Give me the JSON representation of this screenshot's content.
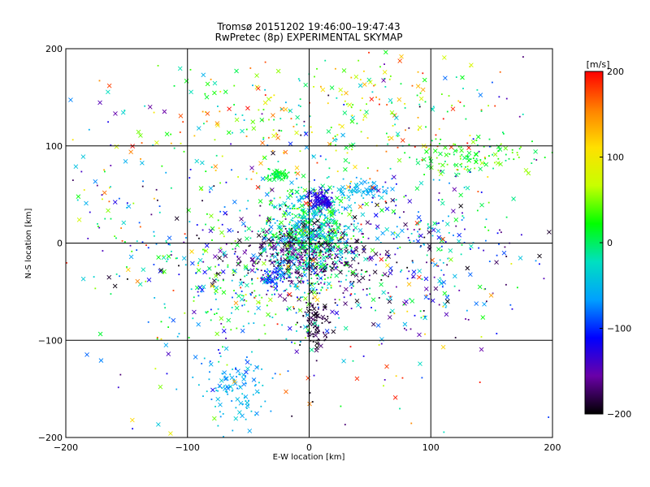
{
  "chart_data": {
    "type": "scatter",
    "title": "Tromsø 20151202 19:46:00–19:47:43",
    "subtitle": "RwPretec (8p) EXPERIMENTAL SKYMAP",
    "xlabel": "E-W location [km]",
    "ylabel": "N-S location [km]",
    "xlim": [
      -200,
      200
    ],
    "ylim": [
      -200,
      200
    ],
    "x_ticks": [
      -200,
      -100,
      0,
      100,
      200
    ],
    "y_ticks": [
      -200,
      -100,
      0,
      100,
      200
    ],
    "grid": true,
    "markers": [
      "dot",
      "x"
    ],
    "colorbar": {
      "label": "[m/s]",
      "range": [
        -200,
        200
      ],
      "ticks": [
        200,
        100,
        0,
        -100,
        -200
      ],
      "colors": [
        "#000000",
        "#6a00a8",
        "#0000ff",
        "#00a0ff",
        "#00e0c0",
        "#00ff00",
        "#c8ff00",
        "#ffe000",
        "#ff8000",
        "#ff0000"
      ],
      "placement": "right"
    },
    "clusters": [
      {
        "cx": 0,
        "cy": 10,
        "sx": 18,
        "sy": 25,
        "n": 700,
        "vmin": -80,
        "vmax": 40
      },
      {
        "cx": -8,
        "cy": -15,
        "sx": 28,
        "sy": 18,
        "n": 380,
        "vmin": -200,
        "vmax": -150
      },
      {
        "cx": 10,
        "cy": 45,
        "sx": 6,
        "sy": 5,
        "n": 90,
        "vmin": -140,
        "vmax": -110
      },
      {
        "cx": -25,
        "cy": 70,
        "sx": 4,
        "sy": 3,
        "n": 60,
        "vmin": -10,
        "vmax": 20
      },
      {
        "cx": 45,
        "cy": 55,
        "sx": 12,
        "sy": 5,
        "n": 70,
        "vmin": -70,
        "vmax": -40
      },
      {
        "cx": -30,
        "cy": -35,
        "sx": 5,
        "sy": 5,
        "n": 50,
        "vmin": -120,
        "vmax": -80
      },
      {
        "cx": 5,
        "cy": -85,
        "sx": 6,
        "sy": 10,
        "n": 90,
        "vmin": -200,
        "vmax": -170
      },
      {
        "cx": -60,
        "cy": -155,
        "sx": 12,
        "sy": 22,
        "n": 110,
        "vmin": -80,
        "vmax": -30
      },
      {
        "cx": 140,
        "cy": 90,
        "sx": 30,
        "sy": 10,
        "n": 120,
        "vmin": -10,
        "vmax": 60
      },
      {
        "cx": 90,
        "cy": -10,
        "sx": 40,
        "sy": 45,
        "n": 260,
        "vmin": -200,
        "vmax": 20
      },
      {
        "cx": -50,
        "cy": -40,
        "sx": 45,
        "sy": 40,
        "n": 300,
        "vmin": -120,
        "vmax": 60
      },
      {
        "cx": -40,
        "cy": 120,
        "sx": 55,
        "sy": 35,
        "n": 150,
        "vmin": -60,
        "vmax": 200
      },
      {
        "cx": 70,
        "cy": 140,
        "sx": 40,
        "sy": 30,
        "n": 120,
        "vmin": -40,
        "vmax": 200
      },
      {
        "cx": -140,
        "cy": 30,
        "sx": 30,
        "sy": 40,
        "n": 80,
        "vmin": -200,
        "vmax": 200
      },
      {
        "cx": 0,
        "cy": 0,
        "sx": 110,
        "sy": 110,
        "n": 400,
        "vmin": -200,
        "vmax": 200
      }
    ]
  }
}
